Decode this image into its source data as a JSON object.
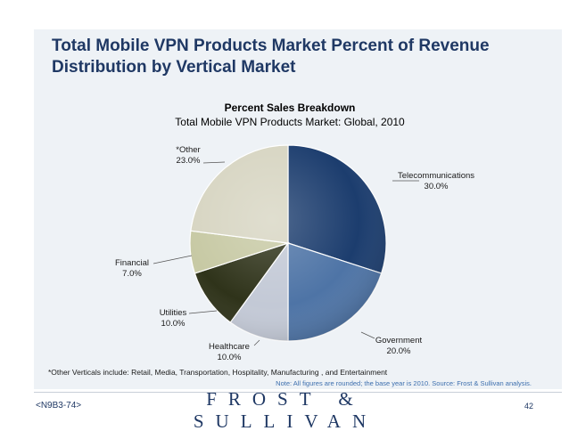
{
  "slide": {
    "title_line1": "Total Mobile VPN Products Market Percent of Revenue",
    "title_line2": "Distribution by Vertical Market",
    "footnote": "*Other Verticals include: Retail, Media, Transportation, Hospitality, Manufacturing , and Entertainment",
    "source_note": "Note: All figures are rounded; the base year is 2010. Source: Frost & Sullivan analysis.",
    "footer_code": "<N9B3-74>",
    "footer_brand": "FROST & SULLIVAN",
    "page_number": "42"
  },
  "chart_data": {
    "type": "pie",
    "title": "Percent Sales Breakdown",
    "subtitle": "Total Mobile VPN Products Market: Global, 2010",
    "slices": [
      {
        "name": "Telecommunications",
        "value": 30.0,
        "label": "30.0%",
        "color": "#1c3d6e"
      },
      {
        "name": "Government",
        "value": 20.0,
        "label": "20.0%",
        "color": "#4e74a6"
      },
      {
        "name": "Healthcare",
        "value": 10.0,
        "label": "10.0%",
        "color": "#c3c9d6"
      },
      {
        "name": "Utilities",
        "value": 10.0,
        "label": "10.0%",
        "color": "#2f331a"
      },
      {
        "name": "Financial",
        "value": 7.0,
        "label": "7.0%",
        "color": "#c7c9a4"
      },
      {
        "name": "*Other",
        "value": 23.0,
        "label": "23.0%",
        "color": "#d7d5c2"
      }
    ],
    "start_angle_deg": 0,
    "direction": "clockwise"
  }
}
